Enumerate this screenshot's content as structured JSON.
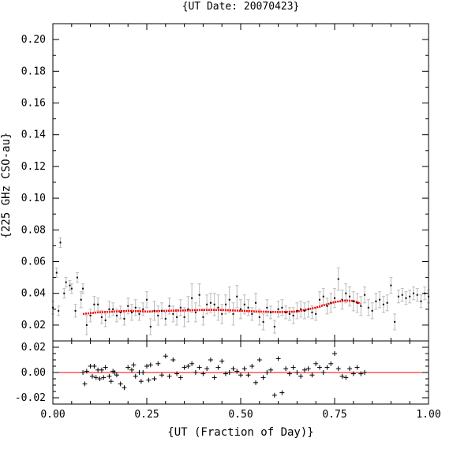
{
  "chart_data": {
    "type": "scatter",
    "title": "{UT Date: 20070423}",
    "xlabel": "{UT (Fraction of Day)}",
    "ylabel": "{225 GHz CSO-au}",
    "xlim": [
      0,
      1
    ],
    "xticks": [
      "0.00",
      "0.25",
      "0.50",
      "0.75",
      "1.00"
    ],
    "main": {
      "ylim": [
        0.01,
        0.21
      ],
      "yticks": [
        "0.02",
        "0.04",
        "0.06",
        "0.08",
        "0.10",
        "0.12",
        "0.14",
        "0.16",
        "0.18",
        "0.20"
      ],
      "series": [
        {
          "kind": "points-with-errorbars",
          "point_color": "#000000",
          "errorbar_color": "#bbbbbb",
          "x": [
            0.0,
            0.01,
            0.015,
            0.02,
            0.03,
            0.035,
            0.045,
            0.05,
            0.06,
            0.065,
            0.075,
            0.08,
            0.09,
            0.1,
            0.11,
            0.12,
            0.13,
            0.14,
            0.15,
            0.16,
            0.17,
            0.18,
            0.19,
            0.2,
            0.21,
            0.22,
            0.23,
            0.24,
            0.25,
            0.26,
            0.27,
            0.28,
            0.29,
            0.3,
            0.31,
            0.32,
            0.33,
            0.34,
            0.35,
            0.36,
            0.37,
            0.38,
            0.39,
            0.4,
            0.41,
            0.42,
            0.43,
            0.44,
            0.45,
            0.46,
            0.47,
            0.48,
            0.49,
            0.5,
            0.51,
            0.52,
            0.53,
            0.54,
            0.55,
            0.56,
            0.57,
            0.58,
            0.59,
            0.6,
            0.61,
            0.62,
            0.63,
            0.64,
            0.65,
            0.66,
            0.67,
            0.68,
            0.69,
            0.7,
            0.71,
            0.72,
            0.73,
            0.74,
            0.75,
            0.76,
            0.77,
            0.78,
            0.79,
            0.8,
            0.81,
            0.82,
            0.83,
            0.84,
            0.85,
            0.86,
            0.87,
            0.88,
            0.89,
            0.9,
            0.91,
            0.92,
            0.93,
            0.94,
            0.95,
            0.96,
            0.97,
            0.98,
            0.99,
            1.0
          ],
          "y": [
            0.031,
            0.053,
            0.029,
            0.072,
            0.04,
            0.047,
            0.045,
            0.043,
            0.029,
            0.05,
            0.036,
            0.043,
            0.02,
            0.026,
            0.033,
            0.033,
            0.025,
            0.023,
            0.03,
            0.03,
            0.026,
            0.028,
            0.024,
            0.032,
            0.028,
            0.031,
            0.027,
            0.03,
            0.036,
            0.019,
            0.029,
            0.026,
            0.029,
            0.024,
            0.032,
            0.027,
            0.025,
            0.031,
            0.025,
            0.03,
            0.037,
            0.028,
            0.039,
            0.025,
            0.033,
            0.034,
            0.033,
            0.031,
            0.027,
            0.033,
            0.036,
            0.027,
            0.038,
            0.03,
            0.033,
            0.031,
            0.027,
            0.034,
            0.025,
            0.022,
            0.031,
            0.028,
            0.019,
            0.03,
            0.031,
            0.028,
            0.027,
            0.026,
            0.029,
            0.03,
            0.029,
            0.03,
            0.028,
            0.027,
            0.036,
            0.038,
            0.032,
            0.034,
            0.037,
            0.049,
            0.036,
            0.04,
            0.038,
            0.035,
            0.034,
            0.032,
            0.039,
            0.031,
            0.029,
            0.035,
            0.036,
            0.033,
            0.034,
            0.045,
            0.022,
            0.038,
            0.039,
            0.037,
            0.038,
            0.04,
            0.039,
            0.035,
            0.04,
            0.038
          ],
          "err": [
            0.004,
            0.003,
            0.003,
            0.003,
            0.003,
            0.003,
            0.003,
            0.003,
            0.004,
            0.003,
            0.005,
            0.003,
            0.006,
            0.004,
            0.005,
            0.004,
            0.004,
            0.004,
            0.005,
            0.004,
            0.004,
            0.004,
            0.004,
            0.005,
            0.005,
            0.005,
            0.004,
            0.004,
            0.005,
            0.005,
            0.006,
            0.006,
            0.005,
            0.004,
            0.005,
            0.005,
            0.005,
            0.005,
            0.006,
            0.008,
            0.009,
            0.006,
            0.007,
            0.005,
            0.006,
            0.006,
            0.007,
            0.008,
            0.006,
            0.006,
            0.008,
            0.007,
            0.007,
            0.006,
            0.006,
            0.005,
            0.004,
            0.006,
            0.005,
            0.005,
            0.005,
            0.004,
            0.004,
            0.005,
            0.005,
            0.004,
            0.004,
            0.005,
            0.005,
            0.005,
            0.005,
            0.005,
            0.004,
            0.004,
            0.005,
            0.005,
            0.005,
            0.006,
            0.006,
            0.007,
            0.006,
            0.006,
            0.006,
            0.006,
            0.006,
            0.006,
            0.005,
            0.005,
            0.005,
            0.005,
            0.005,
            0.005,
            0.005,
            0.005,
            0.005,
            0.004,
            0.004,
            0.004,
            0.004,
            0.004,
            0.004,
            0.004,
            0.004,
            0.004
          ]
        },
        {
          "kind": "fit-curve",
          "color": "#ff0000",
          "x": [
            0.08,
            0.12,
            0.16,
            0.2,
            0.25,
            0.3,
            0.35,
            0.4,
            0.45,
            0.5,
            0.55,
            0.6,
            0.65,
            0.7,
            0.75,
            0.78,
            0.8,
            0.82
          ],
          "y": [
            0.027,
            0.028,
            0.0285,
            0.029,
            0.0285,
            0.029,
            0.0292,
            0.0295,
            0.0295,
            0.029,
            0.0285,
            0.0282,
            0.0285,
            0.031,
            0.0345,
            0.0355,
            0.0352,
            0.0335
          ]
        }
      ]
    },
    "residual": {
      "ylim": [
        -0.025,
        0.025
      ],
      "yticks": [
        "0.02",
        "0.00",
        "-0.02"
      ],
      "zero_line_color": "#ff0000",
      "series": [
        {
          "kind": "plus-markers",
          "color": "#000000",
          "x": [
            0.08,
            0.085,
            0.09,
            0.1,
            0.105,
            0.11,
            0.115,
            0.12,
            0.125,
            0.13,
            0.135,
            0.14,
            0.15,
            0.155,
            0.16,
            0.165,
            0.17,
            0.18,
            0.19,
            0.2,
            0.21,
            0.215,
            0.22,
            0.23,
            0.235,
            0.24,
            0.25,
            0.255,
            0.26,
            0.27,
            0.28,
            0.29,
            0.3,
            0.31,
            0.32,
            0.33,
            0.34,
            0.35,
            0.36,
            0.37,
            0.38,
            0.39,
            0.4,
            0.41,
            0.42,
            0.43,
            0.44,
            0.45,
            0.46,
            0.47,
            0.48,
            0.49,
            0.5,
            0.51,
            0.52,
            0.53,
            0.54,
            0.55,
            0.56,
            0.57,
            0.58,
            0.59,
            0.6,
            0.61,
            0.62,
            0.63,
            0.64,
            0.65,
            0.66,
            0.67,
            0.68,
            0.69,
            0.7,
            0.71,
            0.72,
            0.73,
            0.74,
            0.75,
            0.76,
            0.77,
            0.78,
            0.79,
            0.8,
            0.81,
            0.82,
            0.83
          ],
          "y": [
            0.0,
            -0.009,
            0.001,
            0.005,
            -0.003,
            0.005,
            -0.004,
            0.002,
            -0.005,
            0.002,
            -0.004,
            0.004,
            -0.003,
            -0.007,
            0.001,
            0.0,
            -0.002,
            -0.009,
            -0.012,
            0.004,
            0.002,
            0.006,
            -0.003,
            0.0,
            -0.007,
            0.0,
            0.005,
            -0.006,
            0.006,
            -0.005,
            0.007,
            -0.002,
            0.013,
            -0.003,
            0.01,
            -0.001,
            -0.004,
            0.004,
            0.005,
            0.007,
            0.0,
            0.004,
            -0.001,
            0.003,
            0.01,
            -0.004,
            0.004,
            0.009,
            -0.001,
            0.0,
            0.003,
            0.001,
            -0.002,
            0.003,
            -0.002,
            0.005,
            -0.008,
            0.01,
            -0.004,
            0.0,
            0.002,
            -0.018,
            0.011,
            -0.016,
            0.003,
            -0.001,
            0.004,
            0.0,
            -0.003,
            0.002,
            0.003,
            -0.002,
            0.007,
            0.004,
            0.0,
            0.004,
            0.007,
            0.015,
            0.003,
            -0.003,
            -0.004,
            0.003,
            -0.001,
            0.004,
            -0.001,
            0.0
          ]
        }
      ]
    }
  }
}
